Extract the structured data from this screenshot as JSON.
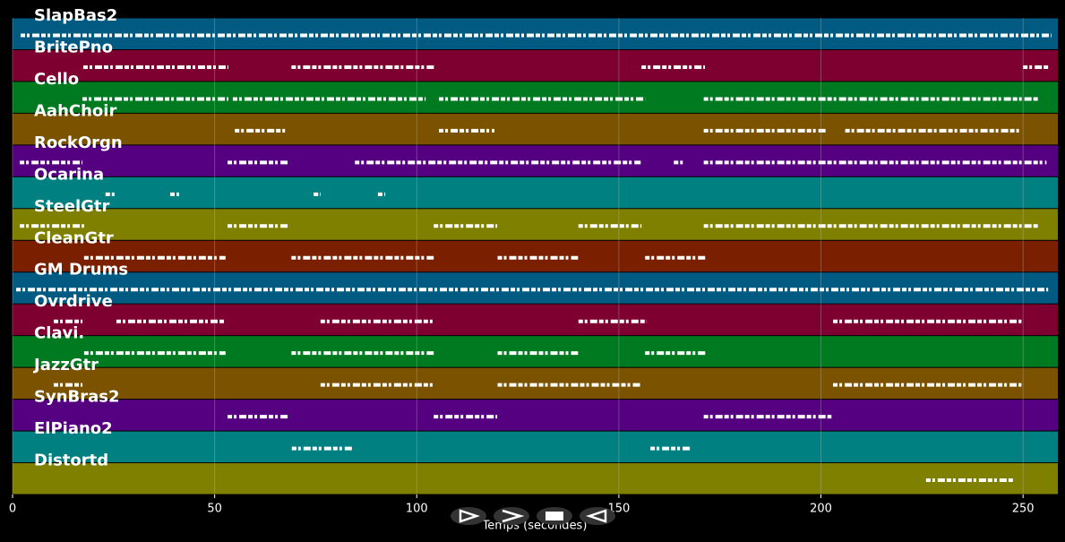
{
  "chart_data": {
    "type": "pianoroll",
    "xlabel": "Temps (secondes)",
    "xlim": [
      0,
      258.6
    ],
    "xticks": [
      0,
      50,
      100,
      150,
      200,
      250
    ],
    "grid": true,
    "tracks": [
      {
        "name": "SlapBas2",
        "color": "#005a82",
        "segments": [
          [
            2,
            257
          ]
        ]
      },
      {
        "name": "BritePno",
        "color": "#7d0030",
        "segments": [
          [
            17.5,
            53.4
          ],
          [
            69,
            104.4
          ],
          [
            155.6,
            171.3
          ],
          [
            250,
            256.2
          ]
        ]
      },
      {
        "name": "Cello",
        "color": "#007a20",
        "segments": [
          [
            17.3,
            53.4
          ],
          [
            54.5,
            102.2
          ],
          [
            105.5,
            156.5
          ],
          [
            171,
            254
          ]
        ]
      },
      {
        "name": "AahChoir",
        "color": "#7a5200",
        "segments": [
          [
            55,
            67.8
          ],
          [
            105.5,
            119.2
          ],
          [
            171,
            201.2
          ],
          [
            206,
            249.6
          ]
        ]
      },
      {
        "name": "RockOrgn",
        "color": "#550080",
        "segments": [
          [
            1.8,
            17.3
          ],
          [
            53.2,
            68.5
          ],
          [
            84.7,
            155.4
          ],
          [
            163.6,
            166.2
          ],
          [
            171,
            255.8
          ]
        ]
      },
      {
        "name": "Ocarina",
        "color": "#008080",
        "segments": [
          [
            23,
            25.3
          ],
          [
            39,
            41.2
          ],
          [
            74.5,
            76.2
          ],
          [
            90.4,
            92.2
          ]
        ]
      },
      {
        "name": "SteelGtr",
        "color": "#808000",
        "segments": [
          [
            1.8,
            17.7
          ],
          [
            53.2,
            68.5
          ],
          [
            104.2,
            119.9
          ],
          [
            140,
            155.6
          ],
          [
            171,
            254
          ]
        ]
      },
      {
        "name": "CleanGtr",
        "color": "#7a2000",
        "segments": [
          [
            17.7,
            52.7
          ],
          [
            69,
            104.2
          ],
          [
            120,
            139.9
          ],
          [
            156.5,
            171.5
          ]
        ]
      },
      {
        "name": "GM Drums",
        "color": "#005a82",
        "segments": [
          [
            0.9,
            256.2
          ]
        ]
      },
      {
        "name": "Ovrdrive",
        "color": "#7d0030",
        "segments": [
          [
            10.2,
            17.3
          ],
          [
            25.7,
            52.3
          ],
          [
            76.2,
            104.2
          ],
          [
            140,
            156.9
          ],
          [
            203,
            249.6
          ]
        ]
      },
      {
        "name": "Clavi.",
        "color": "#007a20",
        "segments": [
          [
            17.7,
            52.7
          ],
          [
            69,
            104.2
          ],
          [
            120,
            139.9
          ],
          [
            156.5,
            171.5
          ]
        ]
      },
      {
        "name": "JazzGtr",
        "color": "#7a5200",
        "segments": [
          [
            10.2,
            17.3
          ],
          [
            76.2,
            104.2
          ],
          [
            120,
            155.6
          ],
          [
            203,
            249.6
          ]
        ]
      },
      {
        "name": "SynBras2",
        "color": "#550080",
        "segments": [
          [
            53.2,
            68.5
          ],
          [
            104.2,
            119.9
          ],
          [
            171,
            202.6
          ]
        ]
      },
      {
        "name": "ElPiano2",
        "color": "#008080",
        "segments": [
          [
            69.1,
            84.2
          ],
          [
            157.8,
            167.6
          ]
        ]
      },
      {
        "name": "Distortd",
        "color": "#808000",
        "segments": [
          [
            226,
            247.8
          ]
        ]
      }
    ]
  }
}
